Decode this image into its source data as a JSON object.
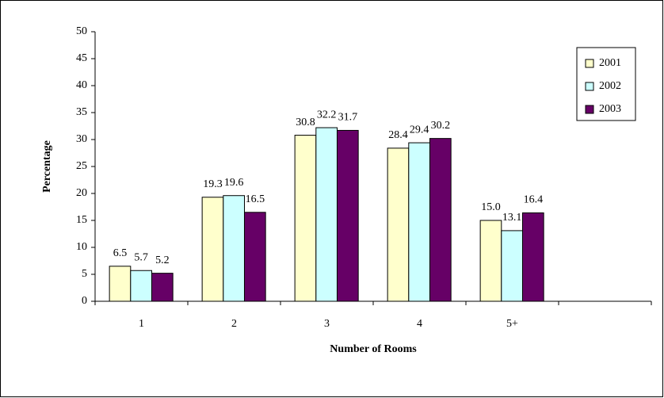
{
  "chart_data": {
    "type": "bar",
    "x_label": "Number of Rooms",
    "y_label": "Percentage",
    "categories": [
      "1",
      "2",
      "3",
      "4",
      "5+",
      null
    ],
    "series": [
      {
        "name": "2001",
        "color": "#ffffcc",
        "values": [
          6.5,
          19.3,
          30.8,
          28.4,
          15.0,
          null
        ],
        "value_labels": [
          "6.5",
          "19.3",
          "30.8",
          "28.4",
          "15.0",
          null
        ]
      },
      {
        "name": "2002",
        "color": "#ccffff",
        "values": [
          5.7,
          19.6,
          32.2,
          29.4,
          13.1,
          null
        ],
        "value_labels": [
          "5.7",
          "19.6",
          "32.2",
          "29.4",
          "13.1",
          null
        ]
      },
      {
        "name": "2003",
        "color": "#660066",
        "values": [
          5.2,
          16.5,
          31.7,
          30.2,
          16.4,
          null
        ],
        "value_labels": [
          "5.2",
          "16.5",
          "31.7",
          "30.2",
          "16.4",
          null
        ]
      }
    ],
    "ylim": [
      0,
      50
    ],
    "yticks": [
      0,
      5,
      10,
      15,
      20,
      25,
      30,
      35,
      40,
      45,
      50
    ],
    "grid": false,
    "legend": "upper right"
  }
}
